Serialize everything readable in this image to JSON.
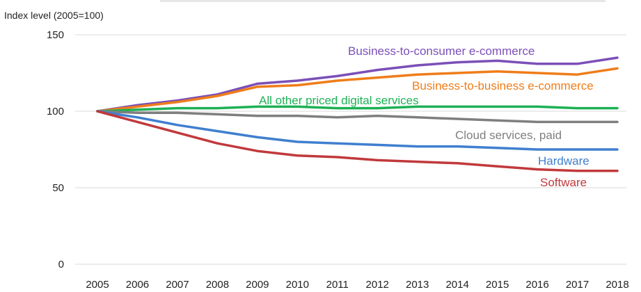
{
  "chart_data": {
    "type": "line",
    "ylabel": "Index level (2005=100)",
    "xlabel": "",
    "ylim": [
      0,
      150
    ],
    "yticks": [
      0,
      50,
      100,
      150
    ],
    "grid": true,
    "categories": [
      "2005",
      "2006",
      "2007",
      "2008",
      "2009",
      "2010",
      "2011",
      "2012",
      "2013",
      "2014",
      "2015",
      "2016",
      "2017",
      "2018"
    ],
    "series": [
      {
        "name": "Business-to-consumer e-commerce",
        "color": "#7b4fb8",
        "values": [
          100,
          104,
          107,
          111,
          118,
          120,
          123,
          127,
          130,
          132,
          133,
          131,
          131,
          135
        ]
      },
      {
        "name": "Business-to-business e-commerce",
        "color": "#ef7d1a",
        "values": [
          100,
          103,
          106,
          110,
          116,
          117,
          120,
          122,
          124,
          125,
          126,
          125,
          124,
          128
        ]
      },
      {
        "name": "All other priced digital services",
        "color": "#1db155",
        "values": [
          100,
          101,
          102,
          102,
          103,
          103,
          102,
          102,
          103,
          103,
          103,
          103,
          102,
          102
        ]
      },
      {
        "name": "Cloud services, paid",
        "color": "#7f7f7f",
        "values": [
          100,
          99,
          99,
          98,
          97,
          97,
          96,
          97,
          96,
          95,
          94,
          93,
          93,
          93
        ]
      },
      {
        "name": "Hardware",
        "color": "#3f7fcf",
        "values": [
          100,
          96,
          91,
          87,
          83,
          80,
          79,
          78,
          77,
          77,
          76,
          75,
          75,
          75
        ]
      },
      {
        "name": "Software",
        "color": "#c1393c",
        "values": [
          100,
          93,
          86,
          79,
          74,
          71,
          70,
          68,
          67,
          66,
          64,
          62,
          61,
          61
        ]
      }
    ]
  }
}
